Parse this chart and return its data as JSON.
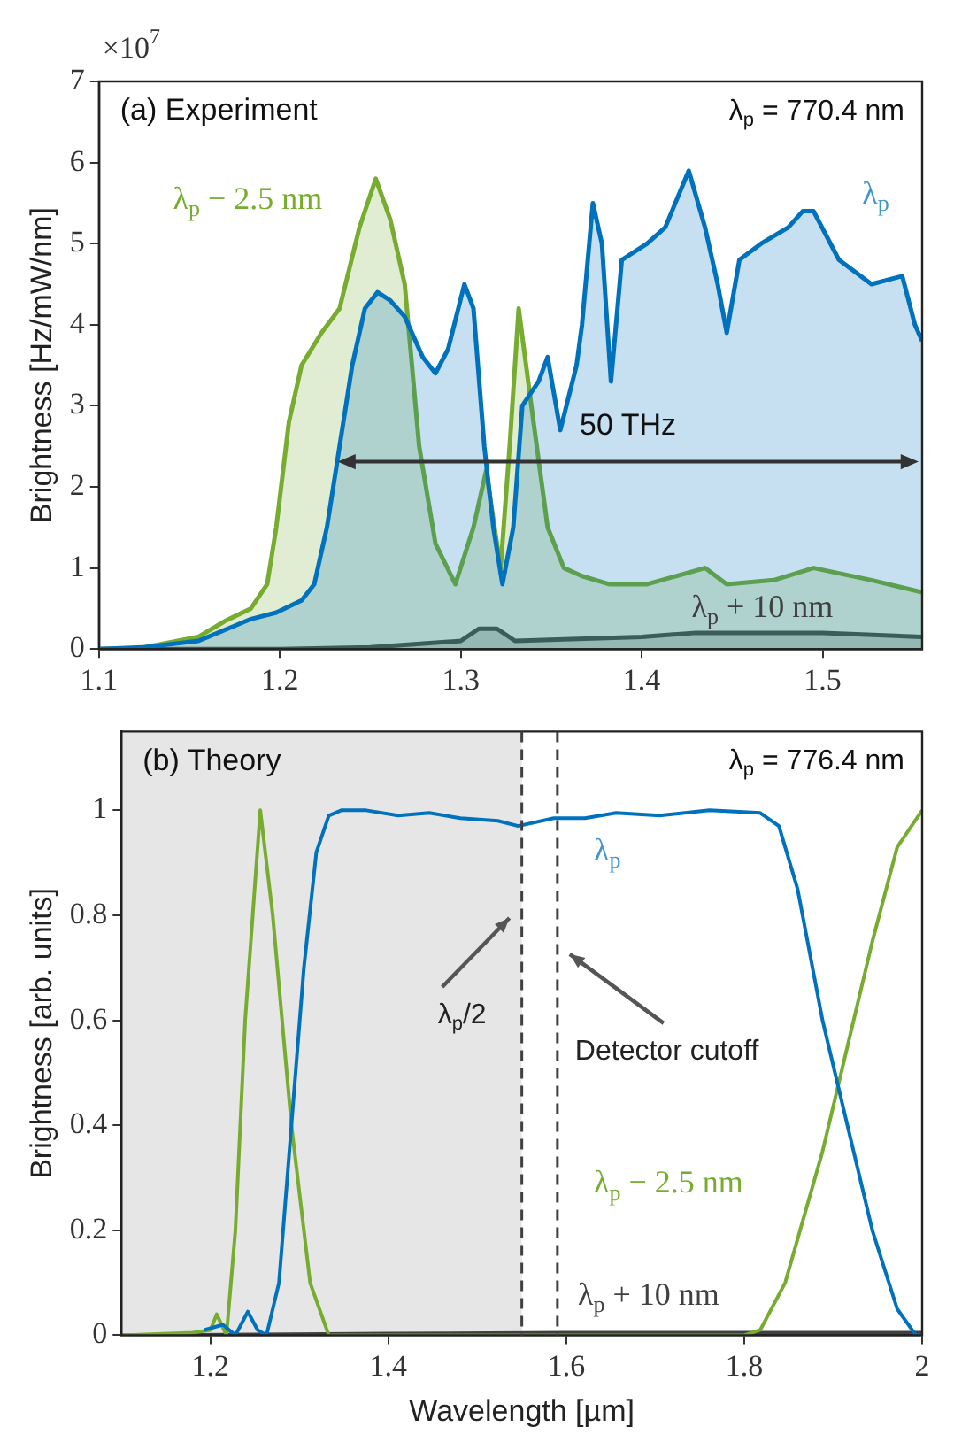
{
  "chart_data": [
    {
      "type": "area",
      "ylabel": "Brightness [Hz/mW/nm]",
      "xlim": [
        1.1,
        1.555
      ],
      "xticks": [
        1.1,
        1.2,
        1.3,
        1.4,
        1.5
      ],
      "ylim": [
        0,
        7
      ],
      "yticks": [
        0,
        1,
        2,
        3,
        4,
        5,
        6,
        7
      ],
      "annotations": [
        "(a) Experiment",
        "λ$_{p}$ = 770.4 nm",
        "×10$^{7}$",
        "50 THz"
      ],
      "series": [
        {
          "name": "λ$_{p}$",
          "color": "#0072bd",
          "x": [
            1.1,
            1.124,
            1.155,
            1.184,
            1.198,
            1.212,
            1.219,
            1.226,
            1.233,
            1.24,
            1.247,
            1.254,
            1.261,
            1.269,
            1.279,
            1.286,
            1.293,
            1.302,
            1.307,
            1.313,
            1.318,
            1.323,
            1.329,
            1.334,
            1.343,
            1.348,
            1.355,
            1.364,
            1.367,
            1.373,
            1.378,
            1.383,
            1.389,
            1.403,
            1.413,
            1.426,
            1.435,
            1.442,
            1.447,
            1.454,
            1.466,
            1.481,
            1.489,
            1.495,
            1.509,
            1.527,
            1.544,
            1.551,
            1.555
          ],
          "values": [
            0,
            0.02,
            0.1,
            0.37,
            0.45,
            0.6,
            0.8,
            1.5,
            2.5,
            3.5,
            4.2,
            4.4,
            4.3,
            4.1,
            3.6,
            3.4,
            3.7,
            4.5,
            4.2,
            2.5,
            1.5,
            0.8,
            1.5,
            3.0,
            3.3,
            3.6,
            2.7,
            3.5,
            4.0,
            5.5,
            5.0,
            3.3,
            4.8,
            5.0,
            5.2,
            5.9,
            5.2,
            4.5,
            3.9,
            4.8,
            5.0,
            5.2,
            5.4,
            5.4,
            4.8,
            4.5,
            4.6,
            4.0,
            3.8
          ]
        },
        {
          "name": "λ$_{p}$ − 2.5 nm",
          "color": "#77ac30",
          "x": [
            1.1,
            1.12,
            1.155,
            1.17,
            1.184,
            1.193,
            1.198,
            1.205,
            1.212,
            1.223,
            1.233,
            1.244,
            1.253,
            1.261,
            1.269,
            1.277,
            1.286,
            1.297,
            1.307,
            1.314,
            1.322,
            1.327,
            1.332,
            1.339,
            1.348,
            1.357,
            1.367,
            1.382,
            1.403,
            1.435,
            1.447,
            1.473,
            1.495,
            1.527,
            1.555
          ],
          "values": [
            0,
            0,
            0.15,
            0.35,
            0.5,
            0.8,
            1.5,
            2.8,
            3.5,
            3.9,
            4.2,
            5.2,
            5.8,
            5.3,
            4.5,
            2.5,
            1.3,
            0.8,
            1.5,
            2.2,
            1.0,
            2.5,
            4.2,
            3.0,
            1.5,
            1.0,
            0.9,
            0.8,
            0.8,
            1.0,
            0.8,
            0.85,
            1.0,
            0.85,
            0.7
          ]
        },
        {
          "name": "λ$_{p}$ + 10 nm",
          "color": "#404040",
          "x": [
            1.1,
            1.2,
            1.25,
            1.3,
            1.31,
            1.32,
            1.33,
            1.4,
            1.43,
            1.5,
            1.555
          ],
          "values": [
            0,
            0,
            0.02,
            0.1,
            0.25,
            0.25,
            0.1,
            0.15,
            0.2,
            0.2,
            0.15
          ]
        }
      ]
    },
    {
      "type": "line",
      "xlabel": "Wavelength [µm]",
      "ylabel": "Brightness [arb. units]",
      "xlim": [
        1.1,
        2
      ],
      "xticks": [
        1.2,
        1.4,
        1.6,
        1.8,
        2
      ],
      "ylim": [
        0,
        1.15
      ],
      "yticks": [
        0,
        0.2,
        0.4,
        0.6,
        0.8,
        1
      ],
      "annotations": [
        "(b) Theory",
        "λ$_{p}$ = 776.4 nm"
      ],
      "bands": [
        {
          "axis": "x",
          "from": 1.1,
          "to": 1.55,
          "color": "#e6e6e6"
        }
      ],
      "ref_lines": [
        {
          "axis": "x",
          "value": 1.55,
          "label": "λ$_{p}$/2",
          "line_style": "dashed",
          "color": "#404040"
        },
        {
          "axis": "x",
          "value": 1.59,
          "label": "Detector cutoff",
          "line_style": "dashed",
          "color": "#404040"
        }
      ],
      "series": [
        {
          "name": "λ$_{p}$",
          "color": "#0072bd",
          "x": [
            1.193,
            1.214,
            1.228,
            1.242,
            1.253,
            1.263,
            1.277,
            1.291,
            1.305,
            1.319,
            1.333,
            1.347,
            1.375,
            1.411,
            1.446,
            1.481,
            1.523,
            1.546,
            1.586,
            1.621,
            1.656,
            1.705,
            1.761,
            1.818,
            1.839,
            1.86,
            1.888,
            1.916,
            1.944,
            1.972,
            1.993,
            2.0
          ],
          "values": [
            0.01,
            0.02,
            0,
            0.045,
            0.01,
            0,
            0.1,
            0.4,
            0.7,
            0.92,
            0.99,
            1.0,
            1.0,
            0.99,
            0.995,
            0.985,
            0.98,
            0.97,
            0.985,
            0.985,
            0.995,
            0.99,
            1.0,
            0.995,
            0.97,
            0.85,
            0.6,
            0.4,
            0.2,
            0.05,
            0,
            0
          ]
        },
        {
          "name": "λ$_{p}$ − 2.5 nm",
          "color": "#77ac30",
          "x": [
            1.1,
            1.18,
            1.2,
            1.207,
            1.218,
            1.228,
            1.239,
            1.256,
            1.27,
            1.291,
            1.312,
            1.333,
            1.8,
            1.818,
            1.846,
            1.888,
            1.916,
            1.944,
            1.972,
            2.0
          ],
          "values": [
            0,
            0.005,
            0.01,
            0.04,
            0,
            0.2,
            0.6,
            1.0,
            0.8,
            0.4,
            0.1,
            0,
            0,
            0.01,
            0.1,
            0.35,
            0.55,
            0.75,
            0.93,
            1.0
          ]
        },
        {
          "name": "λ$_{p}$ + 10 nm",
          "color": "#404040",
          "x": [
            1.1,
            1.4,
            1.6,
            2.0
          ],
          "values": [
            0,
            0.003,
            0.005,
            0.005
          ]
        }
      ]
    }
  ]
}
